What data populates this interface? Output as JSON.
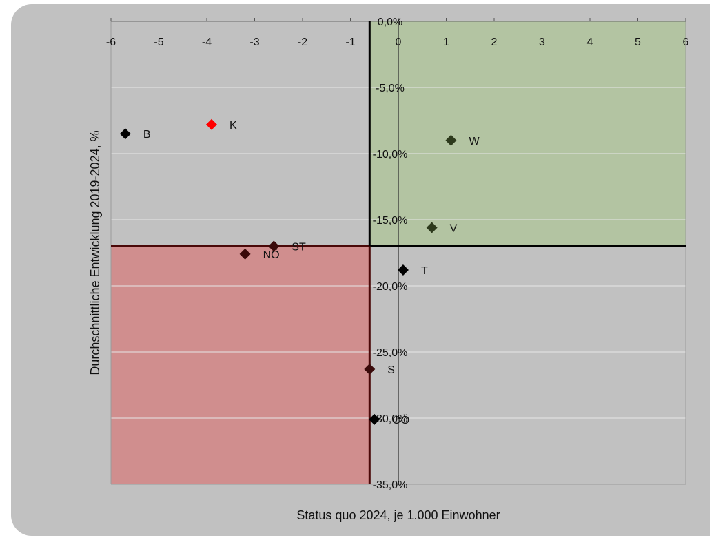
{
  "chart_data": {
    "type": "scatter",
    "xlabel": "Status quo 2024, je 1.000 Einwohner",
    "ylabel": "Durchschnittliche Entwicklung 2019-2024, %",
    "xlim": [
      -6,
      6
    ],
    "ylim": [
      -35,
      0
    ],
    "x_ticks": [
      -6,
      -5,
      -4,
      -3,
      -2,
      -1,
      0,
      1,
      2,
      3,
      4,
      5,
      6
    ],
    "x_tick_labels": [
      "-6",
      "-5",
      "-4",
      "-3",
      "-2",
      "-1",
      "0",
      "1",
      "2",
      "3",
      "4",
      "5",
      "6"
    ],
    "y_ticks": [
      0,
      -5,
      -10,
      -15,
      -20,
      -25,
      -30,
      -35
    ],
    "y_tick_labels": [
      "0,0%",
      "-5,0%",
      "-10,0%",
      "-15,0%",
      "-20,0%",
      "-25,0%",
      "-30,0%",
      "-35,0%"
    ],
    "grid": true,
    "reference_lines": {
      "x": -0.6,
      "y": -17
    },
    "regions": [
      {
        "quadrant": "top-right",
        "color": "#b3c4a2"
      },
      {
        "quadrant": "bottom-left",
        "color": "#d08e8e"
      }
    ],
    "points": [
      {
        "label": "B",
        "x": -5.7,
        "y": -8.5,
        "color": "#000000"
      },
      {
        "label": "K",
        "x": -3.9,
        "y": -7.8,
        "color": "#ff0000"
      },
      {
        "label": "W",
        "x": 1.1,
        "y": -9.0,
        "color": "#2d3a1c"
      },
      {
        "label": "V",
        "x": 0.7,
        "y": -15.6,
        "color": "#2d3a1c"
      },
      {
        "label": "ST",
        "x": -2.6,
        "y": -17.0,
        "color": "#3a0a0a"
      },
      {
        "label": "NÖ",
        "x": -3.2,
        "y": -17.6,
        "color": "#3a0a0a"
      },
      {
        "label": "T",
        "x": 0.1,
        "y": -18.8,
        "color": "#000000"
      },
      {
        "label": "S",
        "x": -0.6,
        "y": -26.3,
        "color": "#3a0a0a"
      },
      {
        "label": "OÖ",
        "x": -0.5,
        "y": -30.1,
        "color": "#000000"
      }
    ]
  }
}
